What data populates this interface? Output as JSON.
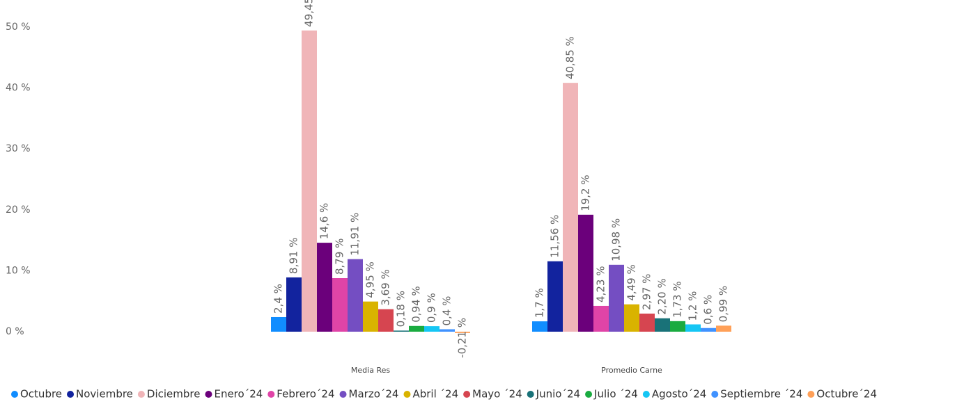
{
  "chart_data": {
    "type": "bar",
    "categories": [
      "Media Res",
      "Promedio Carne"
    ],
    "series": [
      {
        "name": "Octubre",
        "color": "#118dff",
        "values": [
          2.4,
          1.7
        ],
        "value_labels": [
          "2,4 %",
          "1,7 %"
        ]
      },
      {
        "name": "Noviembre",
        "color": "#12239e",
        "values": [
          8.91,
          11.56
        ],
        "value_labels": [
          "8,91 %",
          "11,56 %"
        ]
      },
      {
        "name": "Diciembre",
        "color": "#f0b5b8",
        "values": [
          49.45,
          40.85
        ],
        "value_labels": [
          "49,45 %",
          "40,85 %"
        ]
      },
      {
        "name": "Enero´24",
        "color": "#6b007b",
        "values": [
          14.6,
          19.2
        ],
        "value_labels": [
          "14,6 %",
          "19,2 %"
        ]
      },
      {
        "name": "Febrero´24",
        "color": "#e044a7",
        "values": [
          8.79,
          4.23
        ],
        "value_labels": [
          "8,79 %",
          "4,23 %"
        ]
      },
      {
        "name": "Marzo´24",
        "color": "#744ec2",
        "values": [
          11.91,
          10.98
        ],
        "value_labels": [
          "11,91 %",
          "10,98 %"
        ]
      },
      {
        "name": "Abril ´24",
        "color": "#d9b300",
        "values": [
          4.95,
          4.49
        ],
        "value_labels": [
          "4,95 %",
          "4,49 %"
        ]
      },
      {
        "name": "Mayo ´24",
        "color": "#d64550",
        "values": [
          3.69,
          2.97
        ],
        "value_labels": [
          "3,69 %",
          "2,97 %"
        ]
      },
      {
        "name": "Junio´24",
        "color": "#197278",
        "values": [
          0.18,
          2.2
        ],
        "value_labels": [
          "0,18 %",
          "2,20 %"
        ]
      },
      {
        "name": "Julio ´24",
        "color": "#1aab40",
        "values": [
          0.94,
          1.73
        ],
        "value_labels": [
          "0,94 %",
          "1,73 %"
        ]
      },
      {
        "name": "Agosto´24",
        "color": "#15c6f4",
        "values": [
          0.9,
          1.2
        ],
        "value_labels": [
          "0,9 %",
          "1,2 %"
        ]
      },
      {
        "name": "Septiembre ´24",
        "color": "#4092ff",
        "values": [
          0.4,
          0.6
        ],
        "value_labels": [
          "0,4 %",
          "0,6 %"
        ]
      },
      {
        "name": "Octubre´24",
        "color": "#ffa058",
        "values": [
          -0.21,
          0.99
        ],
        "value_labels": [
          "-0,21 %",
          "0,99 %"
        ]
      }
    ],
    "ylim": [
      -5,
      54
    ],
    "yticks": [
      {
        "value": 0,
        "label": "0 %"
      },
      {
        "value": 10,
        "label": "10 %"
      },
      {
        "value": 20,
        "label": "20 %"
      },
      {
        "value": 30,
        "label": "30 %"
      },
      {
        "value": 40,
        "label": "40 %"
      },
      {
        "value": 50,
        "label": "50 %"
      }
    ],
    "grid": false,
    "legend": "bottom"
  }
}
